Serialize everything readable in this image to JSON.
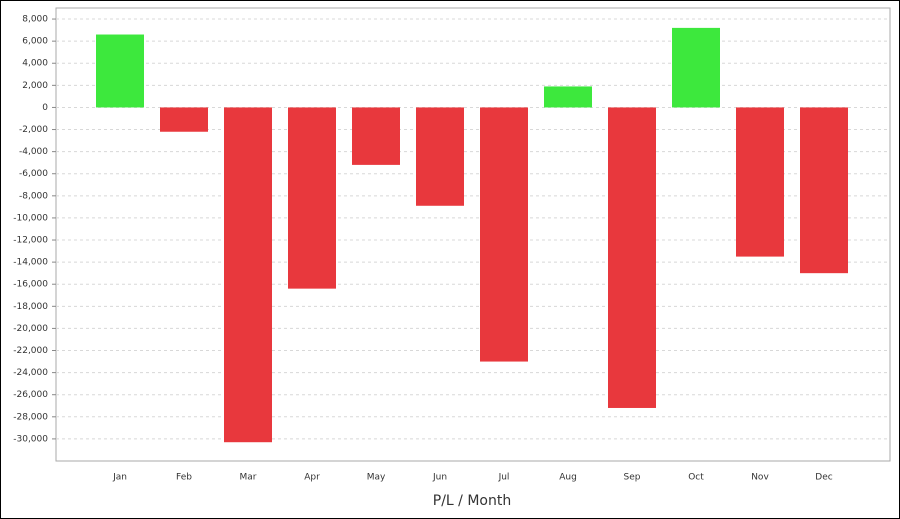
{
  "chart_data": {
    "type": "bar",
    "xlabel": "P/L / Month",
    "categories": [
      "Jan",
      "Feb",
      "Mar",
      "Apr",
      "May",
      "Jun",
      "Jul",
      "Aug",
      "Sep",
      "Oct",
      "Nov",
      "Dec"
    ],
    "values": [
      6600,
      -2200,
      -30300,
      -16400,
      -5200,
      -8900,
      -23000,
      1900,
      -27200,
      7200,
      -13500,
      -15000
    ],
    "colors": {
      "positive": "#3de83d",
      "negative": "#e8383d"
    },
    "ylim": [
      -32000,
      9000
    ],
    "yticks": [
      {
        "value": 8000,
        "label": "8,000"
      },
      {
        "value": 6000,
        "label": "6,000"
      },
      {
        "value": 4000,
        "label": "4,000"
      },
      {
        "value": 2000,
        "label": "2,000"
      },
      0,
      {
        "value": -2000,
        "label": "-2,000"
      },
      {
        "value": -4000,
        "label": "-4,000"
      },
      {
        "value": -6000,
        "label": "-6,000"
      },
      {
        "value": -8000,
        "label": "-8,000"
      },
      {
        "value": -10000,
        "label": "-10,000"
      },
      {
        "value": -12000,
        "label": "-12,000"
      },
      {
        "value": -14000,
        "label": "-14,000"
      },
      {
        "value": -16000,
        "label": "-16,000"
      },
      {
        "value": -18000,
        "label": "-18,000"
      },
      {
        "value": -20000,
        "label": "-20,000"
      },
      {
        "value": -22000,
        "label": "-22,000"
      },
      {
        "value": -24000,
        "label": "-24,000"
      },
      {
        "value": -26000,
        "label": "-26,000"
      },
      {
        "value": -28000,
        "label": "-28,000"
      },
      {
        "value": -30000,
        "label": "-30,000"
      }
    ],
    "grid": true
  }
}
